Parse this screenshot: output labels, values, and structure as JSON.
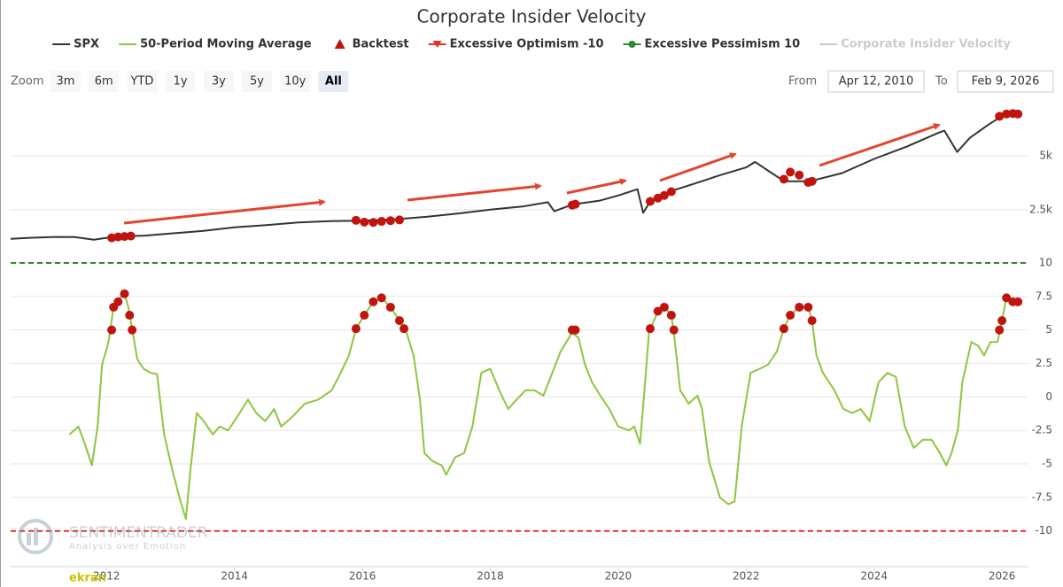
{
  "chart_data": {
    "type": "line",
    "title": "Corporate Insider Velocity",
    "zoom": {
      "label": "Zoom",
      "buttons": [
        "3m",
        "6m",
        "YTD",
        "1y",
        "3y",
        "5y",
        "10y",
        "All"
      ],
      "selected": 7
    },
    "range": {
      "from_label": "From",
      "from": "Apr 12, 2010",
      "to_label": "To",
      "to": "Feb 9, 2026"
    },
    "watermark": {
      "name": "SENTIMENTRADER",
      "tagline": "Analysis over Emotion",
      "credit": "ekran"
    },
    "xlim": [
      2010.5,
      2026.4
    ],
    "xticks": [
      2012,
      2014,
      2016,
      2018,
      2020,
      2022,
      2024,
      2026
    ],
    "ylog": true,
    "ylim": [
      1260,
      11200
    ],
    "yticks": [
      {
        "value": 2500,
        "label": "2.5k"
      },
      {
        "value": 5000,
        "label": "5k"
      }
    ],
    "y2lim": [
      -12,
      10
    ],
    "y2ticks": [
      10,
      7.5,
      5,
      2.5,
      0,
      -2.5,
      -5,
      -7.5,
      -10
    ],
    "grid": true,
    "series": [
      {
        "name": "SPX",
        "type": "line",
        "color": "#333333",
        "axis": "y",
        "x": [
          2010.5,
          2010.8,
          2011.2,
          2011.5,
          2011.8,
          2012,
          2012.3,
          2012.6,
          2013,
          2013.5,
          2014,
          2014.5,
          2015,
          2015.5,
          2016,
          2016.5,
          2017,
          2017.5,
          2018,
          2018.5,
          2018.9,
          2019,
          2019.3,
          2019.7,
          2020,
          2020.3,
          2020.39,
          2020.5,
          2020.8,
          2021.2,
          2021.6,
          2022,
          2022.14,
          2022.4,
          2022.6,
          2023,
          2023.5,
          2024,
          2024.5,
          2025,
          2025.1,
          2025.3,
          2025.5,
          2025.8,
          2026,
          2026.3
        ],
        "values": [
          1718,
          1740,
          1760,
          1758,
          1700,
          1740,
          1777,
          1790,
          1840,
          1900,
          1993,
          2050,
          2120,
          2157,
          2170,
          2206,
          2280,
          2380,
          2500,
          2600,
          2750,
          2450,
          2680,
          2800,
          3000,
          3250,
          2400,
          2780,
          3150,
          3500,
          3900,
          4300,
          4617,
          4000,
          3597,
          3600,
          4000,
          4800,
          5600,
          6700,
          6900,
          5250,
          6300,
          7500,
          8300,
          8600
        ]
      },
      {
        "name": "50-Period Moving Average",
        "type": "line",
        "color": "#8dc63f",
        "axis": "y2",
        "x": [
          2011.42,
          2011.56,
          2011.66,
          2011.77,
          2011.86,
          2011.93,
          2012.03,
          2012.11,
          2012.21,
          2012.28,
          2012.34,
          2012.41,
          2012.48,
          2012.58,
          2012.69,
          2012.79,
          2012.9,
          2013.03,
          2013.14,
          2013.24,
          2013.31,
          2013.41,
          2013.52,
          2013.66,
          2013.77,
          2013.9,
          2014.04,
          2014.21,
          2014.34,
          2014.48,
          2014.62,
          2014.73,
          2014.9,
          2015.1,
          2015.31,
          2015.52,
          2015.66,
          2015.79,
          2015.9,
          2016.03,
          2016.17,
          2016.3,
          2016.44,
          2016.58,
          2016.69,
          2016.8,
          2016.9,
          2016.97,
          2017.1,
          2017.24,
          2017.31,
          2017.45,
          2017.59,
          2017.72,
          2017.86,
          2018,
          2018.14,
          2018.28,
          2018.41,
          2018.55,
          2018.69,
          2018.83,
          2018.97,
          2019.1,
          2019.28,
          2019.38,
          2019.48,
          2019.59,
          2019.72,
          2019.86,
          2020,
          2020.17,
          2020.25,
          2020.34,
          2020.41,
          2020.48,
          2020.62,
          2020.72,
          2020.83,
          2020.87,
          2020.97,
          2021.1,
          2021.24,
          2021.31,
          2021.42,
          2021.59,
          2021.72,
          2021.82,
          2021.93,
          2022.07,
          2022.21,
          2022.34,
          2022.48,
          2022.59,
          2022.69,
          2022.83,
          2022.97,
          2023.03,
          2023.1,
          2023.2,
          2023.38,
          2023.52,
          2023.66,
          2023.79,
          2023.93,
          2024.07,
          2024.21,
          2024.34,
          2024.48,
          2024.62,
          2024.76,
          2024.9,
          2025.03,
          2025.13,
          2025.21,
          2025.31,
          2025.38,
          2025.52,
          2025.63,
          2025.72,
          2025.82,
          2025.93,
          2026,
          2026.07,
          2026.17,
          2026.23,
          2026.3
        ],
        "values": [
          -2.8,
          -2.2,
          -3.5,
          -5.1,
          -2.2,
          2.4,
          4.1,
          6.7,
          7.4,
          7.7,
          6.7,
          4.8,
          2.8,
          2.1,
          1.8,
          1.7,
          -2.8,
          -5.5,
          -7.5,
          -9.1,
          -5.5,
          -1.2,
          -1.8,
          -2.8,
          -2.2,
          -2.5,
          -1.5,
          -0.2,
          -1.2,
          -1.8,
          -0.9,
          -2.2,
          -1.5,
          -0.5,
          -0.2,
          0.5,
          1.8,
          3.1,
          5.1,
          6.1,
          7.1,
          7.4,
          6.7,
          5.7,
          4.8,
          3.1,
          -0.2,
          -4.2,
          -4.8,
          -5.1,
          -5.8,
          -4.5,
          -4.2,
          -2.2,
          1.8,
          2.1,
          0.5,
          -0.9,
          -0.2,
          0.5,
          0.5,
          0.1,
          1.8,
          3.4,
          4.8,
          4.4,
          2.4,
          1.1,
          0.1,
          -0.9,
          -2.2,
          -2.5,
          -2.2,
          -3.5,
          0.5,
          4.8,
          6.4,
          6.7,
          6.1,
          4.8,
          0.5,
          -0.5,
          0.1,
          -0.9,
          -4.8,
          -7.5,
          -8,
          -7.8,
          -2.2,
          1.8,
          2.1,
          2.4,
          3.4,
          5.1,
          6.1,
          6.7,
          6.7,
          5.7,
          3.1,
          1.8,
          0.5,
          -0.9,
          -1.2,
          -0.9,
          -1.8,
          1.1,
          1.8,
          1.5,
          -2.2,
          -3.8,
          -3.2,
          -3.2,
          -4.2,
          -5.1,
          -4.2,
          -2.5,
          1.1,
          4.1,
          3.8,
          3.1,
          4.1,
          4.1,
          5.7,
          7.4,
          7.1,
          7.1,
          7.1
        ]
      },
      {
        "name": "Backtest",
        "type": "scatter",
        "marker": "triangle",
        "color": "#c0140f",
        "axis": "y",
        "x": [
          2012.08,
          2012.18,
          2012.28,
          2012.38,
          2015.9,
          2016.03,
          2016.17,
          2016.3,
          2016.44,
          2016.58,
          2019.28,
          2019.33,
          2020.5,
          2020.62,
          2020.72,
          2020.83,
          2022.59,
          2022.69,
          2022.83,
          2022.97,
          2023.03,
          2025.96,
          2026.07,
          2026.17,
          2026.25
        ],
        "values": [
          1740,
          1760,
          1770,
          1780,
          2180,
          2130,
          2120,
          2150,
          2170,
          2190,
          2650,
          2680,
          2780,
          2900,
          3000,
          3150,
          3700,
          4050,
          3900,
          3550,
          3600,
          8300,
          8550,
          8600,
          8550
        ]
      },
      {
        "name": "Excessive Optimism -10",
        "type": "hline",
        "marker": "triangle-down",
        "color": "#e0342a",
        "axis": "y2",
        "value": -10
      },
      {
        "name": "Excessive Pessimism 10",
        "type": "hline",
        "marker": "circle",
        "color": "#2e8b2e",
        "axis": "y2",
        "value": 10
      },
      {
        "name": "Corporate Insider Velocity",
        "type": "line",
        "color": "#cccccc",
        "axis": "y2",
        "visible": false
      },
      {
        "name": "Backtest",
        "type": "scatter",
        "marker": "triangle",
        "color": "#c0140f",
        "axis": "y2",
        "in_legend": false,
        "x": [
          2012.08,
          2012.11,
          2012.18,
          2012.28,
          2012.36,
          2012.4,
          2015.9,
          2016.03,
          2016.17,
          2016.3,
          2016.44,
          2016.58,
          2016.65,
          2019.28,
          2019.33,
          2020.5,
          2020.62,
          2020.72,
          2020.83,
          2020.87,
          2022.59,
          2022.69,
          2022.83,
          2022.97,
          2023.03,
          2025.96,
          2026,
          2026.07,
          2026.17,
          2026.25
        ],
        "values": [
          5,
          6.7,
          7.1,
          7.7,
          6.1,
          5,
          5.1,
          6.1,
          7.1,
          7.4,
          6.7,
          5.7,
          5.1,
          5,
          5,
          5.1,
          6.4,
          6.7,
          6.1,
          5,
          5.1,
          6.1,
          6.7,
          6.7,
          5.7,
          5,
          5.7,
          7.4,
          7.1,
          7.1
        ]
      }
    ]
  }
}
